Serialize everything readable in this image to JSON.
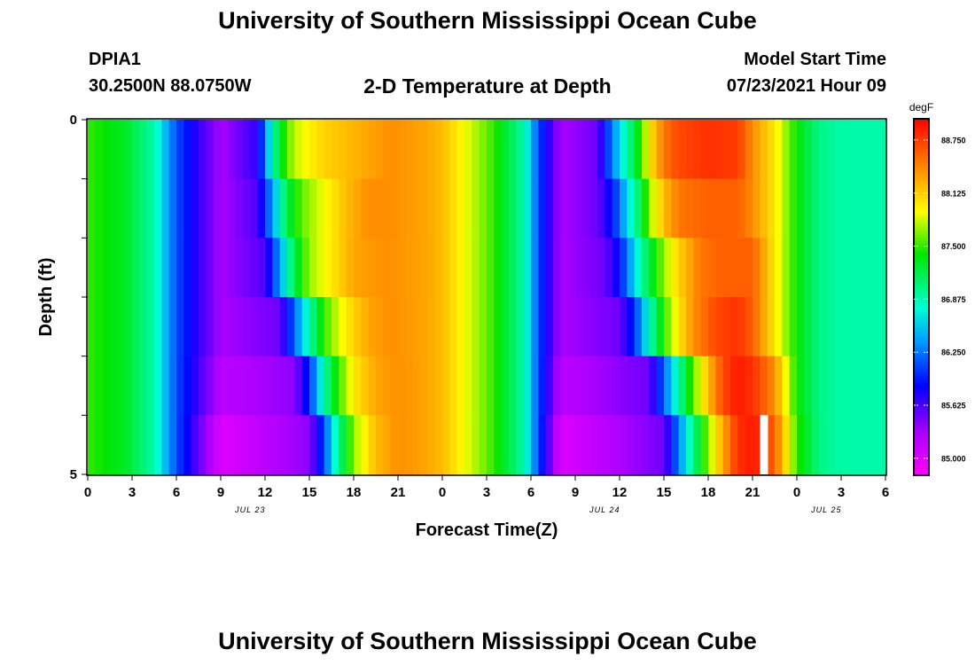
{
  "titles": {
    "top": "University of Southern Mississippi Ocean Cube",
    "bottom": "University of Southern Mississippi Ocean Cube",
    "subtitle": "2-D Temperature at Depth",
    "station": "DPIA1",
    "latlon": "30.2500N  88.0750W",
    "model_start_label": "Model Start Time",
    "model_start_value": "07/23/2021 Hour 09"
  },
  "chart_data": {
    "type": "heatmap",
    "title": "2-D Temperature at Depth",
    "xlabel": "Forecast Time(Z)",
    "ylabel": "Depth (ft)",
    "x_tick_labels": [
      "0",
      "3",
      "6",
      "9",
      "12",
      "15",
      "18",
      "21",
      "0",
      "3",
      "6",
      "9",
      "12",
      "15",
      "18",
      "21",
      "0",
      "3",
      "6"
    ],
    "x_range_hours": [
      0,
      54
    ],
    "date_labels": [
      {
        "text": "JUL 23",
        "hour": 11
      },
      {
        "text": "JUL 24",
        "hour": 35
      },
      {
        "text": "JUL 25",
        "hour": 50
      }
    ],
    "y_range": [
      0,
      5
    ],
    "y_tick_labels": [
      "0",
      "5"
    ],
    "depth_levels": [
      0,
      1,
      2,
      3,
      4,
      5
    ],
    "colorbar": {
      "unit": "degF",
      "min": 84.8,
      "max": 89.0,
      "tick_values": [
        85.0,
        85.625,
        86.25,
        86.875,
        87.5,
        88.125,
        88.75
      ],
      "tick_labels": [
        "85.000",
        "85.625",
        "86.250",
        "86.875",
        "87.500",
        "88.125",
        "88.750"
      ]
    },
    "series_by_depth": [
      {
        "depth": 0,
        "hours": [
          0,
          2.5,
          4.5,
          6,
          9,
          11.5,
          12.5,
          13.5,
          14.5,
          16,
          17.5,
          19,
          20.5,
          23,
          24,
          25.5,
          27.5,
          29.5,
          30.5,
          32,
          34.5,
          35.5,
          36.5,
          37.5,
          38,
          39,
          40,
          42,
          44,
          45,
          46.5,
          48,
          49.5,
          51,
          54
        ],
        "temps": [
          87.5,
          87.3,
          86.9,
          86.1,
          85.3,
          85.7,
          86.9,
          87.6,
          87.9,
          88.1,
          88.2,
          88.3,
          88.4,
          88.3,
          88.2,
          87.9,
          87.5,
          86.9,
          86.1,
          85.3,
          85.5,
          86.3,
          86.9,
          87.5,
          88.0,
          88.5,
          88.7,
          88.8,
          88.75,
          88.4,
          88.0,
          87.4,
          87.0,
          86.9,
          86.9
        ]
      },
      {
        "depth": 1,
        "hours": [
          0,
          2.5,
          4.5,
          6,
          9,
          11.5,
          12.5,
          13.5,
          14.5,
          16,
          17.5,
          19,
          20.5,
          23,
          24,
          25.5,
          27.5,
          29.5,
          30.5,
          32,
          34.5,
          35.5,
          36.5,
          37.5,
          38,
          39,
          40,
          42,
          44,
          45,
          46.5,
          48,
          49.5,
          51,
          54
        ],
        "temps": [
          87.5,
          87.3,
          86.9,
          86.1,
          85.3,
          85.6,
          86.4,
          87.2,
          87.6,
          87.9,
          88.2,
          88.4,
          88.4,
          88.3,
          88.2,
          87.9,
          87.5,
          86.9,
          86.1,
          85.3,
          85.5,
          85.9,
          86.6,
          87.2,
          87.7,
          88.2,
          88.5,
          88.6,
          88.6,
          88.4,
          88.0,
          87.4,
          87.0,
          86.9,
          86.9
        ]
      },
      {
        "depth": 2,
        "hours": [
          0,
          2.5,
          4.5,
          6,
          9,
          12,
          13,
          14,
          15,
          16.5,
          18,
          20,
          23,
          24,
          25.5,
          27.5,
          29.5,
          30.5,
          32,
          35,
          36,
          37,
          38,
          39,
          40,
          41.5,
          43,
          45,
          46.5,
          48,
          49.5,
          51,
          54
        ],
        "temps": [
          87.5,
          87.3,
          86.9,
          86.1,
          85.3,
          85.6,
          86.4,
          87.2,
          87.7,
          88.0,
          88.3,
          88.4,
          88.3,
          88.2,
          87.9,
          87.5,
          86.9,
          86.1,
          85.3,
          85.5,
          85.9,
          86.6,
          87.2,
          87.7,
          88.1,
          88.5,
          88.6,
          88.6,
          88.0,
          87.4,
          87.0,
          86.9,
          86.9
        ]
      },
      {
        "depth": 3,
        "hours": [
          0,
          2.5,
          4.5,
          6,
          9,
          13,
          14,
          15,
          16,
          17.5,
          19,
          20.5,
          23,
          24,
          25.5,
          27.5,
          29.5,
          30.5,
          32,
          36,
          37,
          38,
          39,
          40,
          41,
          42.5,
          44,
          45,
          46.5,
          48,
          49.5,
          51,
          54
        ],
        "temps": [
          87.5,
          87.3,
          86.9,
          86.1,
          85.3,
          85.5,
          86.2,
          86.9,
          87.5,
          88.0,
          88.3,
          88.4,
          88.3,
          88.2,
          87.9,
          87.5,
          86.9,
          86.1,
          85.3,
          85.5,
          86.0,
          86.8,
          87.5,
          88.0,
          88.4,
          88.7,
          88.8,
          88.6,
          88.0,
          87.4,
          87.0,
          86.9,
          86.9
        ]
      },
      {
        "depth": 4,
        "hours": [
          0,
          2.5,
          4.5,
          6,
          9,
          14,
          15,
          16,
          17,
          18,
          19.5,
          21,
          23,
          24,
          25.5,
          27.5,
          29.5,
          30.5,
          32,
          38,
          39,
          40,
          41,
          42,
          43,
          44,
          45,
          46.5,
          48,
          49.5,
          51,
          54
        ],
        "temps": [
          87.5,
          87.3,
          86.9,
          86.1,
          85.2,
          85.4,
          86.0,
          86.9,
          87.5,
          88.0,
          88.3,
          88.4,
          88.3,
          88.2,
          87.9,
          87.5,
          86.9,
          86.1,
          85.2,
          85.5,
          86.2,
          86.9,
          87.6,
          88.2,
          88.7,
          88.9,
          88.8,
          88.4,
          87.4,
          87.0,
          86.9,
          86.9
        ]
      },
      {
        "depth": 5,
        "hours": [
          0,
          2.5,
          4.5,
          6,
          9,
          15,
          16,
          17,
          18,
          19.5,
          21,
          23,
          24,
          25.5,
          27.5,
          29.5,
          30.5,
          32,
          39,
          40,
          41,
          42,
          43,
          44,
          45,
          46.5,
          48,
          49.5,
          51,
          54
        ],
        "temps": [
          87.5,
          87.3,
          86.9,
          86.1,
          85.0,
          85.4,
          86.1,
          87.0,
          87.7,
          88.2,
          88.4,
          88.3,
          88.2,
          87.9,
          87.5,
          86.9,
          86.1,
          85.0,
          85.5,
          86.3,
          87.0,
          87.7,
          88.3,
          88.8,
          88.9,
          88.6,
          87.5,
          87.0,
          86.9,
          86.9
        ]
      }
    ],
    "missing_cells": [
      {
        "depth": 5,
        "hour": 45.75
      }
    ]
  }
}
